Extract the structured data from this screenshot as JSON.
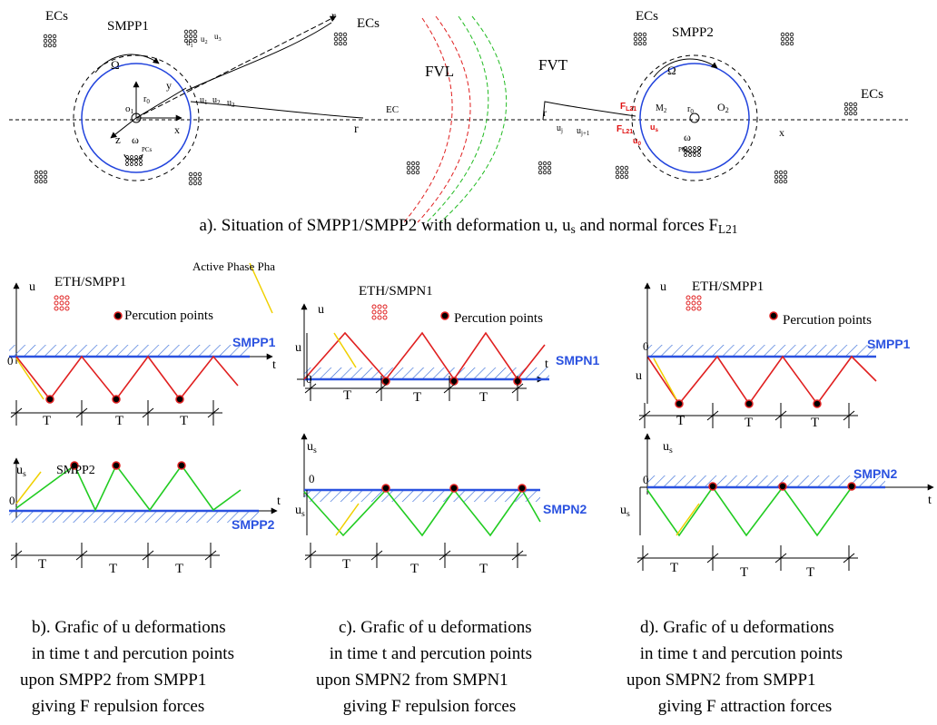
{
  "panel_a": {
    "labels": [
      {
        "text": "ECs"
      },
      {
        "text": "SMPP1"
      },
      {
        "text": "ECs"
      },
      {
        "text": "ECs"
      },
      {
        "text": "SMPP2"
      },
      {
        "text": "ECs"
      },
      {
        "text": "FVL"
      },
      {
        "text": "FVT"
      },
      {
        "text": "EC"
      },
      {
        "text": "r"
      },
      {
        "text": "r"
      },
      {
        "text": "r"
      },
      {
        "text": "x"
      },
      {
        "text": "y"
      },
      {
        "text": "z"
      },
      {
        "text": "Ω"
      },
      {
        "text": "ω"
      },
      {
        "text": "PCs"
      },
      {
        "text": "o",
        "sub": "1"
      },
      {
        "text": "r",
        "sub": "0"
      },
      {
        "text": "x"
      },
      {
        "text": "O",
        "sub": "2"
      },
      {
        "text": "r",
        "sub": "0"
      },
      {
        "text": "Ω"
      },
      {
        "text": "ω"
      },
      {
        "text": "PCs"
      },
      {
        "text": "u",
        "sub": "1"
      },
      {
        "text": "u",
        "sub": "2"
      },
      {
        "text": "u",
        "sub": "3"
      },
      {
        "text": "u",
        "sub": "j"
      },
      {
        "text": "u",
        "sub": "j+1"
      },
      {
        "text": "F",
        "sub": "L21"
      },
      {
        "text": "F",
        "sub": "L21"
      },
      {
        "text": "M",
        "sub": "2"
      },
      {
        "text": "u",
        "sub": "s"
      },
      {
        "text": "u",
        "sub": "0"
      },
      {
        "text": "u",
        "sub": "1"
      },
      {
        "text": "u",
        "sub": "2"
      },
      {
        "text": "u",
        "sub": "3"
      }
    ],
    "caption": [
      {
        "text": "a). Situation of SMPP1/SMPP2 with deformation  u, u",
        "sub": "s"
      },
      {
        "text": "  and normal forces F",
        "sub": "L21"
      }
    ]
  },
  "panels": [
    {
      "labels": [
        {
          "text": "ETH/SMPP1"
        },
        {
          "text": "Percution points"
        },
        {
          "text": "Active Phase  Pha"
        },
        {
          "text": "SMPP1"
        },
        {
          "text": "u"
        },
        {
          "text": "t"
        },
        {
          "text": "0"
        },
        {
          "text": "T"
        },
        {
          "text": "T"
        },
        {
          "text": "T"
        },
        {
          "text": "SMPP2"
        },
        {
          "text": "u",
          "sub": "s"
        },
        {
          "text": "0"
        },
        {
          "text": "t"
        },
        {
          "text": "SMPP2"
        },
        {
          "text": "T"
        },
        {
          "text": "T"
        },
        {
          "text": "T"
        }
      ],
      "caption": [
        "b). Grafic of u deformations",
        " in time t and percution points",
        "upon SMPP2 from SMPP1",
        " giving F repulsion forces"
      ]
    },
    {
      "labels": [
        {
          "text": "ETH/SMPN1"
        },
        {
          "text": "Percution points"
        },
        {
          "text": "u"
        },
        {
          "text": "u"
        },
        {
          "text": "0"
        },
        {
          "text": "t"
        },
        {
          "text": "SMPN1"
        },
        {
          "text": "T"
        },
        {
          "text": "T"
        },
        {
          "text": "T"
        },
        {
          "text": "u",
          "sub": "s"
        },
        {
          "text": "0"
        },
        {
          "text": "u",
          "sub": "s"
        },
        {
          "text": "SMPN2"
        },
        {
          "text": "T"
        },
        {
          "text": "T"
        },
        {
          "text": "T"
        }
      ],
      "caption": [
        "c). Grafic of u deformations",
        " in time t and percution points",
        "upon SMPN2 from SMPN1",
        " giving F repulsion forces"
      ]
    },
    {
      "labels": [
        {
          "text": "ETH/SMPP1"
        },
        {
          "text": "Percution points"
        },
        {
          "text": "u"
        },
        {
          "text": "0"
        },
        {
          "text": "u"
        },
        {
          "text": "SMPP1"
        },
        {
          "text": "T"
        },
        {
          "text": "T"
        },
        {
          "text": "T"
        },
        {
          "text": "u",
          "sub": "s"
        },
        {
          "text": "0"
        },
        {
          "text": "SMPN2"
        },
        {
          "text": "u",
          "sub": "s"
        },
        {
          "text": "t"
        },
        {
          "text": "T"
        },
        {
          "text": "T"
        },
        {
          "text": "T"
        }
      ],
      "caption": [
        "d). Grafic of u deformations",
        " in time t and percution points",
        "upon SMPN2 from SMPP1",
        " giving F attraction forces"
      ]
    }
  ]
}
